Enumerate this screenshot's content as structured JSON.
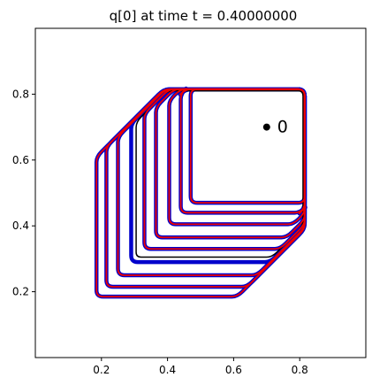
{
  "chart_data": {
    "type": "line",
    "title": "q[0] at time t =     0.40000000",
    "xlabel": "",
    "ylabel": "",
    "xlim": [
      0.0,
      1.0
    ],
    "ylim": [
      0.0,
      1.0
    ],
    "xticks": [
      0.2,
      0.4,
      0.6,
      0.8
    ],
    "yticks": [
      0.2,
      0.4,
      0.6,
      0.8
    ],
    "xtick_labels": [
      "0.2",
      "0.4",
      "0.6",
      "0.8"
    ],
    "ytick_labels": [
      "0.2",
      "0.4",
      "0.6",
      "0.8"
    ],
    "grid": false,
    "annotation": {
      "label": "0",
      "x": 0.7,
      "y": 0.7
    },
    "series": [
      {
        "color": "#0000cc",
        "width": 4.5,
        "contours": [
          {
            "l": 0.185,
            "b": 0.185,
            "r": 0.815,
            "t": 0.815,
            "cut": 0.22,
            "rad": 0.02
          },
          {
            "l": 0.215,
            "b": 0.215,
            "r": 0.815,
            "t": 0.815,
            "cut": 0.19,
            "rad": 0.02
          },
          {
            "l": 0.25,
            "b": 0.25,
            "r": 0.815,
            "t": 0.815,
            "cut": 0.16,
            "rad": 0.02
          },
          {
            "l": 0.29,
            "b": 0.29,
            "r": 0.815,
            "t": 0.815,
            "cut": 0.12,
            "rad": 0.02
          },
          {
            "l": 0.33,
            "b": 0.33,
            "r": 0.815,
            "t": 0.815,
            "cut": 0.09,
            "rad": 0.02
          },
          {
            "l": 0.365,
            "b": 0.365,
            "r": 0.815,
            "t": 0.815,
            "cut": 0.07,
            "rad": 0.02
          },
          {
            "l": 0.405,
            "b": 0.405,
            "r": 0.815,
            "t": 0.815,
            "cut": 0.05,
            "rad": 0.02
          },
          {
            "l": 0.44,
            "b": 0.44,
            "r": 0.815,
            "t": 0.815,
            "cut": 0.03,
            "rad": 0.02
          },
          {
            "l": 0.47,
            "b": 0.47,
            "r": 0.815,
            "t": 0.815,
            "cut": 0.0,
            "rad": 0.02
          }
        ]
      },
      {
        "color": "#000000",
        "width": 1.5,
        "contours": [
          {
            "l": 0.305,
            "b": 0.305,
            "r": 0.81,
            "t": 0.81,
            "cut": 0.11,
            "rad": 0.015
          }
        ]
      },
      {
        "color": "#ee0000",
        "width": 1.8,
        "contours": [
          {
            "l": 0.185,
            "b": 0.185,
            "r": 0.815,
            "t": 0.815,
            "cut": 0.22,
            "rad": 0.02
          },
          {
            "l": 0.215,
            "b": 0.215,
            "r": 0.815,
            "t": 0.815,
            "cut": 0.19,
            "rad": 0.02
          },
          {
            "l": 0.25,
            "b": 0.25,
            "r": 0.815,
            "t": 0.815,
            "cut": 0.16,
            "rad": 0.02
          },
          {
            "l": 0.33,
            "b": 0.33,
            "r": 0.815,
            "t": 0.815,
            "cut": 0.09,
            "rad": 0.02
          },
          {
            "l": 0.365,
            "b": 0.365,
            "r": 0.815,
            "t": 0.815,
            "cut": 0.07,
            "rad": 0.02
          },
          {
            "l": 0.405,
            "b": 0.405,
            "r": 0.815,
            "t": 0.815,
            "cut": 0.05,
            "rad": 0.02
          },
          {
            "l": 0.44,
            "b": 0.44,
            "r": 0.815,
            "t": 0.815,
            "cut": 0.03,
            "rad": 0.02
          },
          {
            "l": 0.47,
            "b": 0.47,
            "r": 0.815,
            "t": 0.815,
            "cut": 0.0,
            "rad": 0.02
          }
        ]
      }
    ]
  }
}
